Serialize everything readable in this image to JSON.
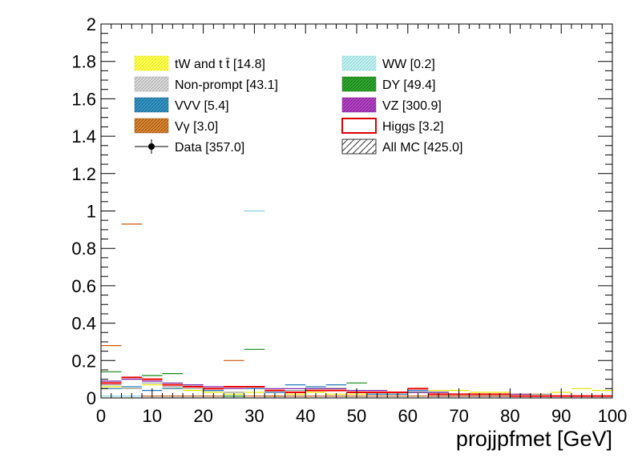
{
  "chart_data": {
    "type": "step-histogram",
    "xlabel": "projjpfmet [GeV]",
    "ylabel": "",
    "xlim": [
      0,
      100
    ],
    "ylim": [
      0,
      2
    ],
    "x_ticks": [
      "0",
      "10",
      "20",
      "30",
      "40",
      "50",
      "60",
      "70",
      "80",
      "90",
      "100"
    ],
    "y_ticks": [
      "0",
      "0.2",
      "0.4",
      "0.6",
      "0.8",
      "1",
      "1.2",
      "1.4",
      "1.6",
      "1.8",
      "2"
    ],
    "bin_edges": [
      0,
      4,
      8,
      12,
      16,
      20,
      24,
      28,
      32,
      36,
      40,
      44,
      48,
      52,
      56,
      60,
      64,
      68,
      72,
      76,
      80,
      84,
      88,
      92,
      96,
      100
    ],
    "legend": {
      "placement": "top-left inside",
      "entries": [
        {
          "label": "tW and t t̄ [14.8]",
          "style": "fill",
          "color": "#ffff66",
          "hatch": "#e8e800"
        },
        {
          "label": "WW [0.2]",
          "style": "fill",
          "color": "#ccf2f2",
          "hatch": "#88d6d6"
        },
        {
          "label": "Non-prompt [43.1]",
          "style": "fill",
          "color": "#dcdcdc",
          "hatch": "#aaaaaa"
        },
        {
          "label": "DY [49.4]",
          "style": "fill",
          "color": "#33aa33",
          "hatch": "#117711"
        },
        {
          "label": "VVV [5.4]",
          "style": "fill",
          "color": "#3399cc",
          "hatch": "#226688"
        },
        {
          "label": "VZ [300.9]",
          "style": "fill",
          "color": "#bb44cc",
          "hatch": "#772288"
        },
        {
          "label": "Vγ [3.0]",
          "style": "fill",
          "color": "#dd8833",
          "hatch": "#995511"
        },
        {
          "label": "Higgs [3.2]",
          "style": "outline",
          "color": "#dd0000"
        },
        {
          "label": "Data [357.0]",
          "style": "marker",
          "color": "#000000"
        },
        {
          "label": "All MC [425.0]",
          "style": "hatch",
          "color": "#333333"
        }
      ]
    },
    "series": [
      {
        "name": "tW and t t̄ [14.8]",
        "color": "#e6e600",
        "values": [
          0.06,
          0.05,
          0.07,
          0.05,
          0.04,
          0.03,
          0.02,
          0.03,
          0.04,
          0.02,
          0.03,
          0.02,
          0.02,
          0.03,
          0.02,
          0.03,
          0.04,
          0.04,
          0.03,
          0.03,
          0.02,
          0.02,
          0.03,
          0.05,
          0.04
        ]
      },
      {
        "name": "WW [0.2]",
        "color": "#7fcfe0",
        "values": [
          0.01,
          0.01,
          0.01,
          0.01,
          0.01,
          0.01,
          0.01,
          1.0,
          0.01,
          0.01,
          0.01,
          0.01,
          0.01,
          0.01,
          0.01,
          0.01,
          0.01,
          0.01,
          0.01,
          0.01,
          0.01,
          0.01,
          0.01,
          0.01,
          0.01
        ]
      },
      {
        "name": "Non-prompt [43.1]",
        "color": "#999999",
        "values": [
          0.07,
          0.05,
          0.08,
          0.06,
          0.05,
          0.04,
          0.03,
          0.05,
          0.03,
          0.04,
          0.05,
          0.04,
          0.03,
          0.03,
          0.02,
          0.03,
          0.02,
          0.02,
          0.02,
          0.01,
          0.01,
          0.02,
          0.01,
          0.01,
          0.01
        ]
      },
      {
        "name": "DY [49.4]",
        "color": "#118811",
        "values": [
          0.14,
          0.11,
          0.12,
          0.13,
          0.07,
          0.05,
          0.01,
          0.26,
          0.01,
          0.03,
          0.04,
          0.05,
          0.08,
          0.02,
          0.03,
          0.03,
          0.03,
          0.02,
          0.02,
          0.02,
          0.01,
          0.01,
          0.01,
          0.01,
          0.01
        ]
      },
      {
        "name": "VVV [5.4]",
        "color": "#2277bb",
        "values": [
          0.05,
          0.06,
          0.04,
          0.05,
          0.06,
          0.04,
          0.06,
          0.05,
          0.03,
          0.07,
          0.06,
          0.07,
          0.03,
          0.02,
          0.02,
          0.04,
          0.01,
          0.01,
          0.01,
          0.01,
          0.01,
          0.01,
          0.01,
          0.01,
          0.01
        ]
      },
      {
        "name": "VZ [300.9]",
        "color": "#7722aa",
        "values": [
          0.09,
          0.1,
          0.09,
          0.08,
          0.07,
          0.06,
          0.05,
          0.06,
          0.05,
          0.05,
          0.05,
          0.05,
          0.04,
          0.04,
          0.03,
          0.03,
          0.03,
          0.02,
          0.02,
          0.02,
          0.02,
          0.01,
          0.01,
          0.01,
          0.01
        ]
      },
      {
        "name": "Vγ [3.0]",
        "color": "#cc5511",
        "values": [
          0.28,
          0.93,
          0.01,
          0.01,
          0.01,
          0.01,
          0.2,
          0.01,
          0.01,
          0.01,
          0.01,
          0.01,
          0.01,
          0.01,
          0.01,
          0.01,
          0.01,
          0.01,
          0.01,
          0.01,
          0.01,
          0.01,
          0.01,
          0.01,
          0.01
        ]
      },
      {
        "name": "Higgs [3.2]",
        "color": "#ee0000",
        "values": [
          0.08,
          0.11,
          0.1,
          0.07,
          0.06,
          0.05,
          0.06,
          0.06,
          0.04,
          0.03,
          0.04,
          0.04,
          0.03,
          0.03,
          0.03,
          0.05,
          0.02,
          0.02,
          0.02,
          0.02,
          0.01,
          0.01,
          0.01,
          0.01,
          0.01
        ]
      }
    ]
  }
}
